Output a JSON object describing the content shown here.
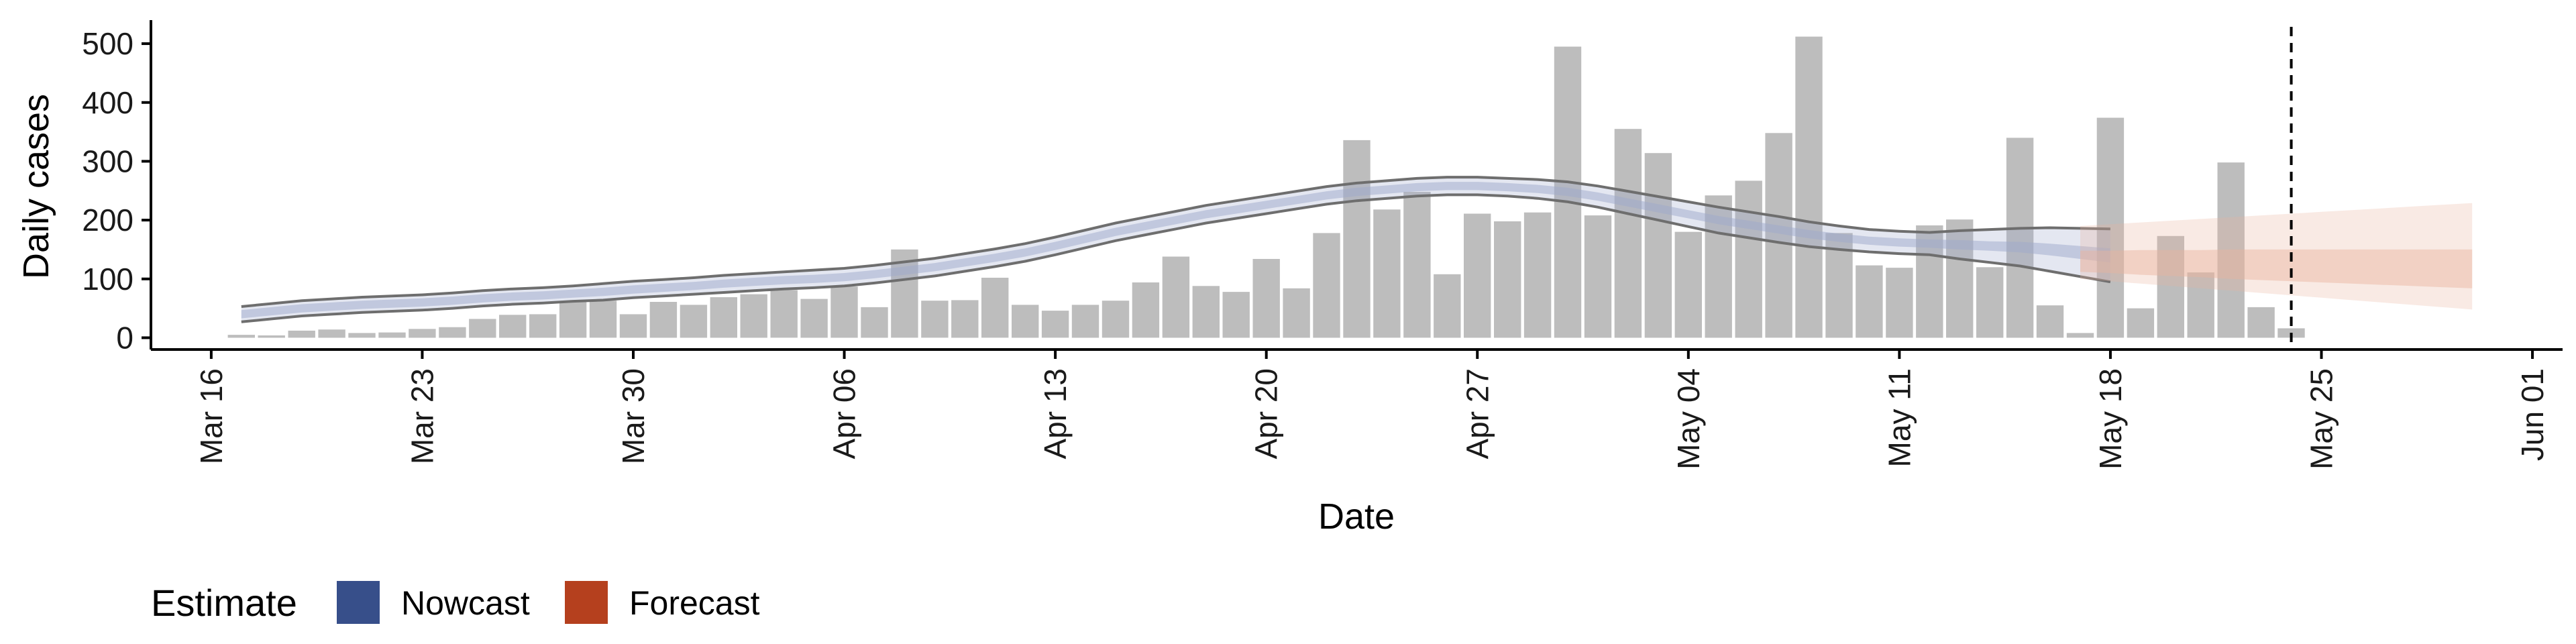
{
  "chart_data": {
    "type": "bar",
    "xlabel": "Date",
    "ylabel": "Daily cases",
    "xlim": [
      "2020-03-14",
      "2020-06-02"
    ],
    "ylim": [
      -20,
      540
    ],
    "x_ticks": [
      "2020-03-16",
      "2020-03-23",
      "2020-03-30",
      "2020-04-06",
      "2020-04-13",
      "2020-04-20",
      "2020-04-27",
      "2020-05-04",
      "2020-05-11",
      "2020-05-18",
      "2020-05-25",
      "2020-06-01"
    ],
    "x_tick_labels": [
      "Mar 16",
      "Mar 23",
      "Mar 30",
      "Apr 06",
      "Apr 13",
      "Apr 20",
      "Apr 27",
      "May 04",
      "May 11",
      "May 18",
      "May 25",
      "Jun 01"
    ],
    "y_ticks": [
      0,
      100,
      200,
      300,
      400,
      500
    ],
    "y_tick_labels": [
      "0",
      "100",
      "200",
      "300",
      "400",
      "500"
    ],
    "bars": {
      "start_date": "2020-03-17",
      "values": [
        5,
        4,
        12,
        14,
        8,
        9,
        15,
        18,
        32,
        39,
        40,
        61,
        63,
        40,
        61,
        56,
        69,
        74,
        81,
        66,
        87,
        52,
        150,
        63,
        64,
        102,
        56,
        46,
        56,
        63,
        94,
        138,
        88,
        78,
        134,
        84,
        178,
        336,
        218,
        248,
        108,
        211,
        198,
        213,
        495,
        208,
        355,
        314,
        180,
        242,
        267,
        348,
        512,
        178,
        123,
        119,
        191,
        201,
        120,
        340,
        55,
        8,
        374,
        50,
        173,
        111,
        298,
        52,
        16
      ]
    },
    "series": [
      {
        "name": "Nowcast",
        "start_date": "2020-03-17",
        "median": [
          40,
          45,
          50,
          53,
          56,
          58,
          60,
          63,
          67,
          70,
          72,
          75,
          78,
          82,
          85,
          88,
          92,
          95,
          98,
          100,
          103,
          108,
          114,
          120,
          128,
          136,
          145,
          156,
          168,
          180,
          190,
          200,
          210,
          218,
          226,
          234,
          242,
          248,
          252,
          256,
          258,
          258,
          256,
          253,
          248,
          240,
          230,
          220,
          210,
          200,
          192,
          184,
          176,
          170,
          165,
          162,
          160,
          158,
          156,
          154,
          150,
          145,
          140
        ],
        "lower50": [
          33,
          38,
          43,
          46,
          49,
          51,
          53,
          56,
          60,
          63,
          65,
          68,
          71,
          75,
          78,
          81,
          85,
          88,
          91,
          93,
          96,
          101,
          107,
          113,
          121,
          129,
          138,
          149,
          161,
          173,
          183,
          193,
          203,
          211,
          219,
          227,
          235,
          241,
          245,
          249,
          251,
          251,
          249,
          246,
          241,
          233,
          223,
          213,
          203,
          193,
          185,
          177,
          169,
          163,
          158,
          155,
          153,
          150,
          148,
          145,
          140,
          134,
          128
        ],
        "upper50": [
          47,
          52,
          57,
          60,
          63,
          65,
          67,
          70,
          74,
          77,
          79,
          82,
          85,
          89,
          92,
          95,
          99,
          102,
          105,
          107,
          110,
          115,
          121,
          127,
          135,
          143,
          152,
          163,
          175,
          187,
          197,
          207,
          217,
          225,
          233,
          241,
          249,
          255,
          259,
          263,
          265,
          265,
          263,
          260,
          255,
          247,
          237,
          227,
          217,
          207,
          199,
          191,
          183,
          177,
          172,
          169,
          167,
          166,
          164,
          163,
          160,
          156,
          152
        ],
        "lower90": [
          27,
          32,
          37,
          40,
          43,
          45,
          47,
          50,
          54,
          57,
          59,
          62,
          64,
          68,
          71,
          74,
          77,
          80,
          83,
          85,
          88,
          93,
          99,
          105,
          113,
          121,
          130,
          141,
          153,
          165,
          175,
          185,
          195,
          203,
          211,
          219,
          227,
          233,
          237,
          241,
          243,
          243,
          241,
          237,
          231,
          222,
          211,
          200,
          189,
          178,
          170,
          162,
          155,
          150,
          146,
          143,
          141,
          134,
          128,
          122,
          113,
          104,
          95
        ],
        "upper90": [
          53,
          58,
          63,
          66,
          69,
          71,
          73,
          76,
          80,
          83,
          85,
          88,
          92,
          96,
          99,
          102,
          106,
          109,
          112,
          115,
          118,
          123,
          129,
          135,
          143,
          151,
          160,
          171,
          183,
          195,
          205,
          215,
          225,
          233,
          241,
          249,
          257,
          263,
          267,
          271,
          273,
          273,
          271,
          269,
          265,
          258,
          249,
          240,
          231,
          222,
          214,
          206,
          197,
          190,
          184,
          181,
          179,
          182,
          184,
          186,
          187,
          186,
          185
        ]
      },
      {
        "name": "Forecast",
        "start_date": "2020-05-17",
        "median": [
          130,
          129,
          128,
          127,
          126,
          125,
          124,
          123,
          122,
          121,
          120,
          119,
          118,
          117
        ],
        "lower50": [
          112,
          110,
          107,
          105,
          103,
          100,
          98,
          96,
          94,
          92,
          90,
          88,
          86,
          84
        ],
        "upper50": [
          148,
          148,
          149,
          149,
          149,
          150,
          150,
          150,
          150,
          150,
          150,
          150,
          150,
          150
        ],
        "lower90": [
          100,
          96,
          92,
          88,
          84,
          80,
          76,
          72,
          68,
          64,
          60,
          56,
          52,
          48
        ],
        "upper90": [
          190,
          193,
          196,
          199,
          202,
          205,
          208,
          211,
          214,
          217,
          220,
          223,
          226,
          229
        ]
      }
    ],
    "reference_line": "2020-05-24",
    "legend": {
      "title": "Estimate",
      "position": "bottom-left",
      "entries": [
        {
          "label": "Nowcast",
          "color": "#374f8a"
        },
        {
          "label": "Forecast",
          "color": "#b5401e"
        }
      ]
    },
    "colors": {
      "bar": "#bdbdbd",
      "nowcast_band": "#9eaacc",
      "forecast_band": "#e8b49e",
      "bound_line": "#6e6e6e",
      "axis": "#000000"
    }
  }
}
